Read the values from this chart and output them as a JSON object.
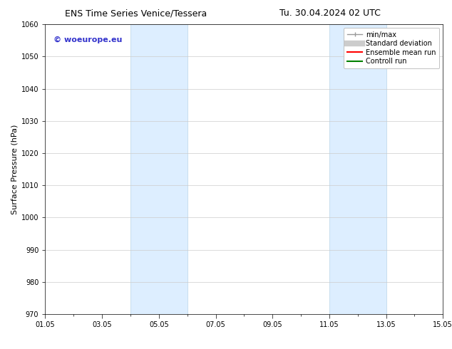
{
  "title_left": "ENS Time Series Venice/Tessera",
  "title_right": "Tu. 30.04.2024 02 UTC",
  "ylabel": "Surface Pressure (hPa)",
  "ylim": [
    970,
    1060
  ],
  "yticks": [
    970,
    980,
    990,
    1000,
    1010,
    1020,
    1030,
    1040,
    1050,
    1060
  ],
  "xtick_labels": [
    "01.05",
    "03.05",
    "05.05",
    "07.05",
    "09.05",
    "11.05",
    "13.05",
    "15.05"
  ],
  "xtick_positions": [
    1,
    3,
    5,
    7,
    9,
    11,
    13,
    15
  ],
  "xlim": [
    1,
    15
  ],
  "shaded_bands": [
    {
      "x_start": 4.0,
      "x_end": 6.0
    },
    {
      "x_start": 11.0,
      "x_end": 13.0
    }
  ],
  "band_color": "#ddeeff",
  "band_edge_color": "#b8d4e8",
  "watermark_text": "© woeurope.eu",
  "watermark_color": "#3333cc",
  "watermark_fontsize": 8,
  "legend_labels": [
    "min/max",
    "Standard deviation",
    "Ensemble mean run",
    "Controll run"
  ],
  "legend_colors": [
    "#999999",
    "#cccccc",
    "red",
    "green"
  ],
  "background_color": "#ffffff",
  "grid_color": "#cccccc",
  "title_fontsize": 9,
  "ylabel_fontsize": 8,
  "tick_fontsize": 7,
  "legend_fontsize": 7
}
